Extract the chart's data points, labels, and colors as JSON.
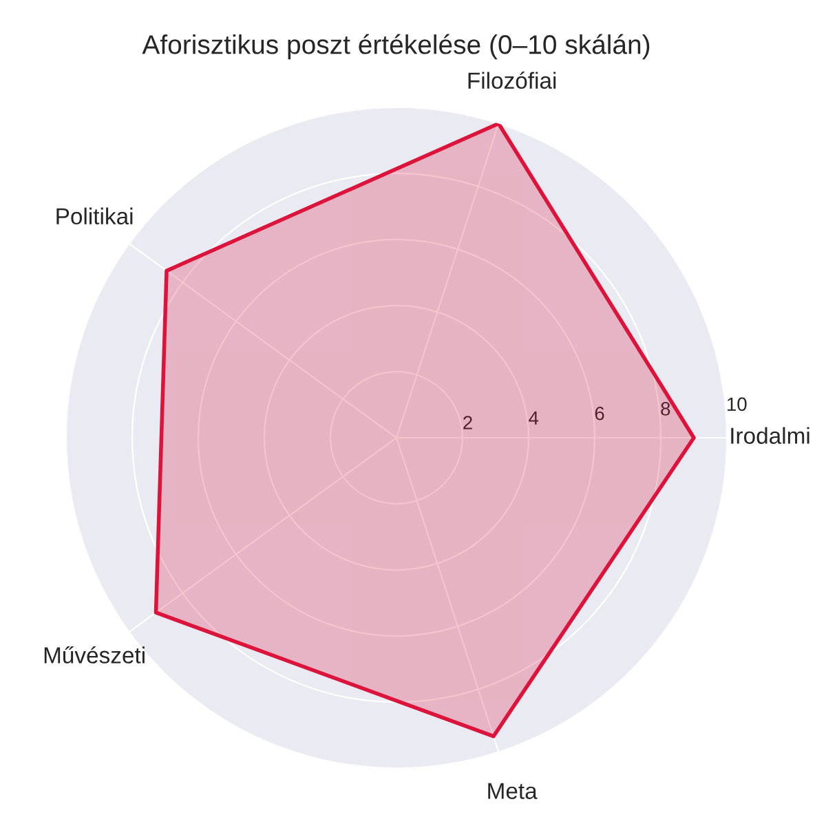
{
  "chart_data": {
    "type": "radar",
    "title": "Aforisztikus poszt értékelése (0–10 skálán)",
    "categories": [
      "Filozófiai",
      "Irodalmi",
      "Meta",
      "Művészeti",
      "Politikai"
    ],
    "series": [
      {
        "color": "#dc143c",
        "values": [
          10,
          9.0,
          9.5,
          9.0,
          8.6
        ]
      }
    ],
    "ylim": [
      0,
      10
    ],
    "yticks": [
      2,
      4,
      6,
      8,
      10
    ],
    "grid": true
  }
}
